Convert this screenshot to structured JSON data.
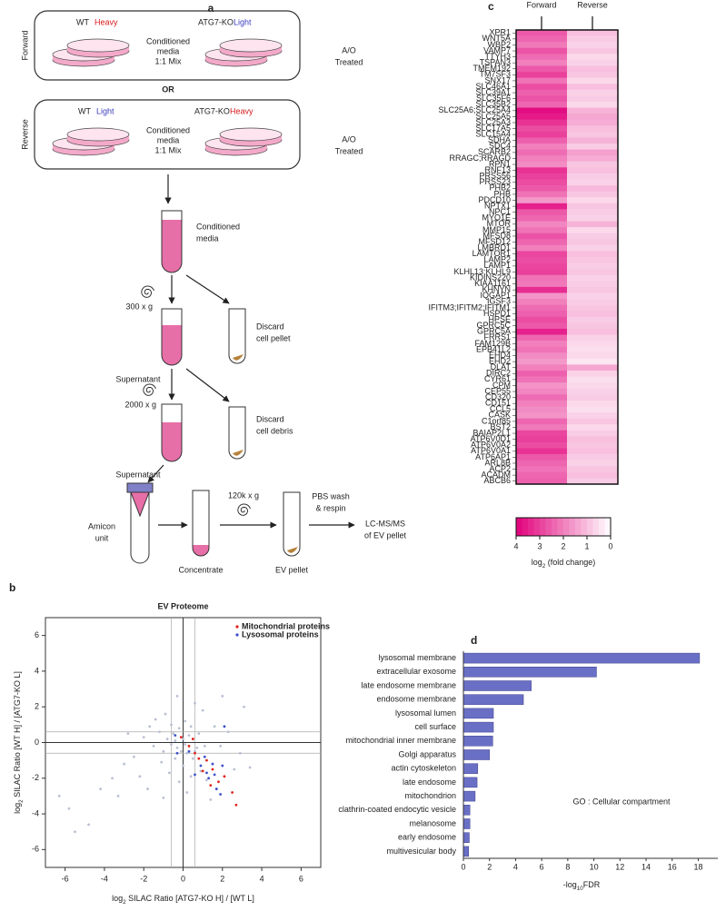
{
  "diagram": {
    "label": "a",
    "forward": {
      "side": "Forward",
      "wt": "WT",
      "wt_label": "Heavy",
      "ko": "ATG7-KO",
      "ko_label": "Light",
      "mix": [
        "Conditioned",
        "media",
        "1:1 Mix"
      ],
      "treat": [
        "A/O",
        "Treated"
      ]
    },
    "or": "OR",
    "reverse": {
      "side": "Reverse",
      "wt": "WT",
      "wt_label": "Light",
      "ko": "ATG7-KO",
      "ko_label": "Heavy",
      "mix": [
        "Conditioned",
        "media",
        "1:1 Mix"
      ],
      "treat": [
        "A/O",
        "Treated"
      ]
    },
    "steps": {
      "media": [
        "Conditioned",
        "media"
      ],
      "spin1": "300 x g",
      "super1": "Supernatant",
      "discard1": [
        "Discard",
        "cell pellet"
      ],
      "spin2": "2000 x g",
      "super2": "Supernatant",
      "discard2": [
        "Discard",
        "cell debris"
      ],
      "amicon": [
        "Amicon",
        "unit"
      ],
      "concentrate": "Concentrate",
      "spin3": "120k x g",
      "ev": "EV pellet",
      "wash": [
        "PBS wash",
        "& respin"
      ],
      "ms": [
        "LC-MS/MS",
        "of EV pellet"
      ]
    }
  },
  "chart_data": [
    {
      "type": "scatter",
      "label": "b",
      "title": "EV Proteome",
      "xlabel": {
        "main": "log",
        "sub": "2",
        "rest": " SILAC Ratio [ATG7-KO H] / [WT L]"
      },
      "ylabel": {
        "main": "log",
        "sub": "2",
        "rest": " SILAC Ratio [WT H] / [ATG7-KO L]"
      },
      "xlim": [
        -7,
        7
      ],
      "ylim": [
        -7,
        7
      ],
      "xticks": [
        -6,
        -4,
        -2,
        0,
        2,
        4,
        6
      ],
      "yticks": [
        -6,
        -4,
        -2,
        0,
        2,
        4,
        6
      ],
      "ref_lines": {
        "x": [
          0,
          -0.6,
          0.6
        ],
        "y": [
          0,
          -0.6,
          0.6
        ]
      },
      "legend": "upper right",
      "series": [
        {
          "color": "#b9c0d2",
          "x": [
            -0.5,
            -0.2,
            0.1,
            -0.8,
            -0.3,
            0.2,
            0.5,
            -1.0,
            -0.6,
            0.3,
            0.7,
            -0.4,
            0.0,
            0.9,
            1.2,
            -1.2,
            -1.5,
            -2.0,
            -2.5,
            -3.0,
            -3.6,
            -4.2,
            -5.8,
            -5.5,
            -4.8,
            -6.3,
            -2.2,
            -1.8,
            -0.7,
            -0.2,
            0.4,
            1.0,
            1.6,
            2.3,
            2.9,
            3.4,
            0.6,
            -0.9,
            -1.4,
            1.9,
            2.6,
            0.0,
            -0.1,
            0.4,
            -0.6,
            0.8,
            -1.7,
            -2.8,
            3.1,
            2.0,
            -0.3,
            0.2,
            1.4,
            -1.0,
            -3.3,
            0.1,
            -0.4,
            0.6,
            1.1,
            -1.1
          ],
          "values": [
            0.5,
            0.8,
            1.2,
            0.2,
            -0.3,
            -0.6,
            -0.9,
            -0.5,
            1.0,
            0.4,
            -0.3,
            -0.9,
            -1.3,
            -1.6,
            -2.1,
            0.6,
            -0.2,
            0.3,
            -0.8,
            -1.2,
            -2.0,
            -2.6,
            -3.7,
            -5.0,
            -4.6,
            -3.0,
            -1.9,
            -2.6,
            -1.7,
            -2.2,
            -1.9,
            1.8,
            0.9,
            0.6,
            -0.6,
            -1.4,
            2.2,
            1.6,
            1.3,
            -0.2,
            -1.5,
            0.2,
            -0.5,
            0.9,
            -0.1,
            0.5,
            0.9,
            0.5,
            2.0,
            2.6,
            2.6,
            -2.8,
            -3.2,
            -3.1,
            -3.0,
            -0.1,
            0.1,
            -0.5,
            -0.2,
            -1.1
          ]
        },
        {
          "name": "Mitochondrial proteins",
          "color": "#e0231c",
          "x": [
            1.5,
            2.5,
            2.7,
            1.2,
            0.8,
            1.8,
            2.1,
            1.0,
            0.6,
            1.4,
            0.3,
            -0.1,
            0.5
          ],
          "values": [
            -1.5,
            -2.8,
            -3.5,
            -1.0,
            -0.9,
            -2.2,
            -1.9,
            -1.6,
            -0.6,
            -2.4,
            -0.2,
            0.3,
            0.2
          ]
        },
        {
          "name": "Lysosomal proteins",
          "color": "#3d4fc8",
          "x": [
            1.5,
            1.3,
            2.0,
            1.7,
            1.2,
            2.1,
            1.1,
            0.9,
            -0.4,
            0.6,
            0.3,
            1.9,
            -0.3,
            1.6
          ],
          "values": [
            -1.2,
            -2.0,
            -1.3,
            -2.6,
            -1.7,
            0.9,
            -0.8,
            -1.3,
            0.4,
            -1.8,
            -0.5,
            -2.9,
            -0.6,
            -1.8
          ]
        }
      ]
    },
    {
      "type": "heatmap",
      "label": "c",
      "x_categories": [
        "Forward",
        "Reverse"
      ],
      "y_categories": [
        "XPR1",
        "WNT5A",
        "WBP2",
        "VAMP7",
        "TTYH3",
        "TSPAN3",
        "TMEM192",
        "TM7SF3",
        "SNX17",
        "SLC46A1",
        "SLC39A1",
        "SLC35F6",
        "SLC35B2",
        "SLC25A6;SLC25A4",
        "SLC25A5",
        "SLC25A3",
        "SLC17A5",
        "SLC15A4",
        "SDHA",
        "SDC4",
        "SCARB2",
        "RRAGC;RRAGD",
        "RPN1",
        "RNF13",
        "PRSS56",
        "PRSS23",
        "PHB2",
        "PHB",
        "PDCD10",
        "NPTX1",
        "NPC1",
        "MYO1E",
        "MTOR",
        "MMP15",
        "MFSD8",
        "MFSD12",
        "LMBRD1",
        "LAMTOR1",
        "LAMP2",
        "LAMP1",
        "KLHL13;KLHL9",
        "KIDINS220",
        "KIAA1161",
        "KHNYN",
        "IQGAP1",
        "IGSF3",
        "IFITM3;IFITM2;IFITM1",
        "HSPD1",
        "HPSE",
        "GPRC5C",
        "GPRC5A",
        "FRRS1",
        "FAM129B",
        "EPB41L2",
        "EHD4",
        "EHD2",
        "DLAT",
        "DIRC2",
        "CYR61",
        "CPM",
        "CEP55",
        "CD320",
        "CD151",
        "CCL5",
        "CASK",
        "C1orf85",
        "BST2",
        "BAIAP2L1",
        "ATP6V0D1",
        "ATP6V0A2",
        "ATP6V0A1",
        "ATP6AP1",
        "ARL8B",
        "ACP2",
        "ACADM",
        "ABCB6"
      ],
      "values": [
        [
          2.6,
          1.0
        ],
        [
          2.4,
          0.8
        ],
        [
          2.1,
          0.7
        ],
        [
          2.7,
          0.9
        ],
        [
          2.3,
          0.6
        ],
        [
          2.0,
          0.7
        ],
        [
          2.6,
          1.0
        ],
        [
          3.0,
          0.9
        ],
        [
          2.2,
          0.6
        ],
        [
          2.8,
          1.0
        ],
        [
          2.5,
          0.7
        ],
        [
          2.7,
          0.8
        ],
        [
          2.4,
          0.6
        ],
        [
          3.8,
          1.2
        ],
        [
          3.6,
          1.4
        ],
        [
          3.2,
          1.3
        ],
        [
          2.8,
          1.0
        ],
        [
          3.0,
          0.9
        ],
        [
          2.5,
          1.2
        ],
        [
          2.0,
          0.8
        ],
        [
          2.3,
          1.5
        ],
        [
          2.0,
          1.3
        ],
        [
          1.8,
          0.9
        ],
        [
          3.2,
          1.0
        ],
        [
          3.0,
          0.8
        ],
        [
          2.8,
          0.7
        ],
        [
          2.6,
          1.1
        ],
        [
          2.2,
          0.9
        ],
        [
          1.6,
          0.6
        ],
        [
          3.5,
          0.9
        ],
        [
          2.6,
          0.8
        ],
        [
          2.4,
          0.7
        ],
        [
          1.9,
          1.2
        ],
        [
          2.2,
          0.6
        ],
        [
          2.7,
          0.8
        ],
        [
          2.4,
          0.9
        ],
        [
          2.0,
          0.7
        ],
        [
          2.9,
          1.0
        ],
        [
          2.8,
          0.9
        ],
        [
          2.9,
          0.8
        ],
        [
          3.0,
          0.9
        ],
        [
          2.2,
          0.7
        ],
        [
          2.1,
          0.8
        ],
        [
          3.3,
          0.9
        ],
        [
          1.7,
          0.7
        ],
        [
          2.0,
          0.8
        ],
        [
          2.3,
          0.9
        ],
        [
          2.5,
          1.0
        ],
        [
          2.8,
          0.8
        ],
        [
          2.6,
          0.9
        ],
        [
          3.5,
          1.0
        ],
        [
          2.4,
          0.7
        ],
        [
          2.0,
          0.6
        ],
        [
          2.2,
          0.5
        ],
        [
          1.8,
          0.6
        ],
        [
          1.6,
          0.4
        ],
        [
          2.0,
          1.4
        ],
        [
          2.5,
          0.7
        ],
        [
          2.2,
          0.5
        ],
        [
          1.7,
          0.6
        ],
        [
          1.9,
          0.7
        ],
        [
          2.3,
          0.8
        ],
        [
          2.0,
          0.6
        ],
        [
          1.8,
          0.5
        ],
        [
          1.7,
          0.7
        ],
        [
          2.4,
          0.9
        ],
        [
          2.1,
          0.6
        ],
        [
          2.9,
          0.8
        ],
        [
          3.0,
          1.0
        ],
        [
          2.8,
          0.9
        ],
        [
          3.2,
          1.0
        ],
        [
          2.6,
          0.8
        ],
        [
          2.4,
          0.7
        ],
        [
          2.2,
          0.9
        ],
        [
          2.4,
          1.0
        ],
        [
          2.5,
          0.8
        ]
      ],
      "clim": [
        4,
        0
      ],
      "cticks": [
        4,
        3,
        2,
        1,
        0
      ],
      "colors": [
        "#ffffff",
        "#e2007b"
      ],
      "color_label": {
        "main": "log",
        "sub": "2",
        "rest": " (fold change)"
      }
    },
    {
      "type": "hbar",
      "label": "d",
      "categories": [
        "lysosomal membrane",
        "extracellular exosome",
        "late endosome membrane",
        "endosome membrane",
        "lysosomal lumen",
        "cell surface",
        "mitochondrial inner membrane",
        "Golgi apparatus",
        "actin cytoskeleton",
        "late endosome",
        "mitochondrion",
        "clathrin-coated endocytic vesicle",
        "melanosome",
        "early endosome",
        "multivesicular body"
      ],
      "values": [
        18.1,
        10.2,
        5.2,
        4.6,
        2.3,
        2.3,
        2.25,
        2.0,
        1.1,
        1.05,
        0.9,
        0.5,
        0.5,
        0.45,
        0.4
      ],
      "color": "#6a6fc6",
      "xlim": [
        0,
        19.5
      ],
      "xticks": [
        0,
        2,
        4,
        6,
        8,
        10,
        12,
        14,
        16,
        18
      ],
      "xlabel": {
        "main": "-log",
        "sub": "10",
        "rest": "FDR"
      },
      "annotation": "GO : Cellular compartment"
    }
  ]
}
